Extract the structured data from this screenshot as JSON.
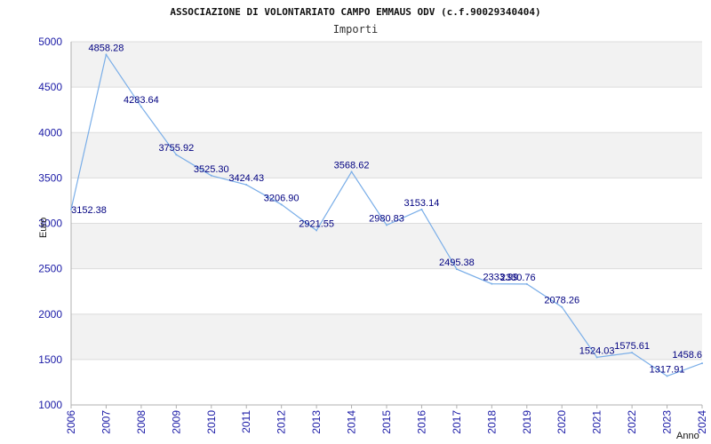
{
  "chart_data": {
    "type": "line",
    "title": "ASSOCIAZIONE DI VOLONTARIATO CAMPO EMMAUS ODV (c.f.90029340404)",
    "subtitle": "Importi",
    "xlabel": "Anno",
    "ylabel": "Euro",
    "ylim": [
      1000,
      5000
    ],
    "yticks": [
      1000,
      1500,
      2000,
      2500,
      3000,
      3500,
      4000,
      4500,
      5000
    ],
    "x": [
      "2006",
      "2007",
      "2008",
      "2009",
      "2010",
      "2011",
      "2012",
      "2013",
      "2014",
      "2015",
      "2016",
      "2017",
      "2018",
      "2019",
      "2020",
      "2021",
      "2022",
      "2023",
      "2024"
    ],
    "values": [
      3152.38,
      4858.28,
      4283.64,
      3755.92,
      3525.3,
      3424.43,
      3206.9,
      2921.55,
      3568.62,
      2980.83,
      3153.14,
      2495.38,
      2333.99,
      2330.76,
      2078.26,
      1524.03,
      1575.61,
      1317.91,
      1458.6
    ],
    "value_labels": [
      "3152.38",
      "4858.28",
      "4283.64",
      "3755.92",
      "3525.30",
      "3424.43",
      "3206.90",
      "2921.55",
      "3568.62",
      "2980.83",
      "3153.14",
      "2495.38",
      "2333.99",
      "2330.76",
      "2078.26",
      "1524.03",
      "1575.61",
      "1317.91",
      "1458.6"
    ],
    "grid": true,
    "band_colors": [
      "#f2f2f2",
      "#ffffff"
    ],
    "line_color": "#7aaee8",
    "tick_color": "#1a1aa6",
    "label_color": "#000080"
  }
}
